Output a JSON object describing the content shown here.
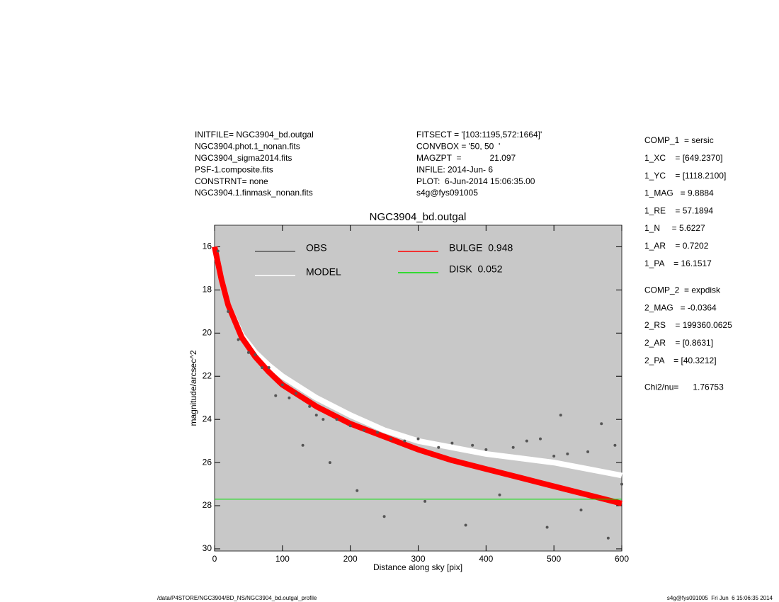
{
  "header": {
    "left": [
      "INITFILE= NGC3904_bd.outgal",
      "NGC3904.phot.1_nonan.fits",
      "NGC3904_sigma2014.fits",
      "PSF-1.composite.fits",
      "CONSTRNT= none",
      "NGC3904.1.finmask_nonan.fits"
    ],
    "middle": [
      "FITSECT = '[103:1195,572:1664]'",
      "CONVBOX = '50, 50  '",
      "MAGZPT  =            21.097",
      "INFILE: 2014-Jun- 6",
      "PLOT:  6-Jun-2014 15:06:35.00",
      "s4g@fys091005"
    ]
  },
  "parameters": [
    [
      "COMP_1  = sersic",
      "1_XC    = [649.2370]",
      "1_YC    = [1118.2100]",
      "1_MAG   = 9.8884",
      "1_RE    = 57.1894",
      "1_N     = 5.6227",
      "1_AR    = 0.7202",
      "1_PA    = 16.1517"
    ],
    [
      "COMP_2  = expdisk",
      "2_MAG   = -0.0364",
      "2_RS    = 199360.0625",
      "2_AR    = [0.8631]",
      "2_PA    = [40.3212]"
    ],
    [
      "Chi2/nu=      1.76753"
    ]
  ],
  "footer_left": "/data/P4STORE/NGC3904/BD_NS/NGC3904_bd.outgal_profile",
  "footer_right": "s4g@fys091005  Fri Jun  6 15:06:35 2014",
  "chart_data": {
    "type": "scatter",
    "title": "NGC3904_bd.outgal",
    "x_label": "Distance along sky [pix]",
    "y_label": "magnitude/arcsec^2",
    "xlim": [
      0,
      600
    ],
    "ylim": [
      15,
      30.1
    ],
    "y_inverted": true,
    "xticks": [
      0,
      100,
      200,
      300,
      400,
      500,
      600
    ],
    "yticks": [
      16,
      18,
      20,
      22,
      24,
      26,
      28,
      30
    ],
    "background": "#c8c8c8",
    "series": [
      {
        "name": "OBS",
        "color": "#555555",
        "mode": "points",
        "x": [
          5,
          20,
          35,
          50,
          60,
          70,
          80,
          90,
          100,
          110,
          120,
          130,
          140,
          150,
          160,
          170,
          180,
          200,
          210,
          220,
          240,
          250,
          260,
          280,
          300,
          310,
          330,
          350,
          370,
          380,
          400,
          420,
          440,
          460,
          480,
          490,
          500,
          510,
          520,
          540,
          550,
          570,
          580,
          590,
          600
        ],
        "values": [
          16.2,
          19.0,
          20.3,
          20.9,
          21.0,
          21.6,
          21.6,
          22.9,
          22.4,
          23.0,
          22.8,
          25.2,
          23.4,
          23.8,
          24.0,
          26.0,
          24.0,
          24.3,
          27.3,
          24.5,
          24.6,
          28.5,
          24.9,
          25.0,
          24.9,
          27.8,
          25.3,
          25.1,
          28.9,
          25.2,
          25.4,
          27.5,
          25.3,
          25.0,
          24.9,
          29.0,
          25.7,
          23.8,
          25.6,
          28.2,
          25.5,
          24.2,
          29.5,
          25.2,
          27.0
        ]
      },
      {
        "name": "MODEL",
        "color": "#ffffff",
        "mode": "line",
        "x": [
          0,
          10,
          20,
          40,
          60,
          80,
          100,
          150,
          200,
          250,
          300,
          350,
          400,
          450,
          500,
          550,
          600
        ],
        "values": [
          16.0,
          17.5,
          18.7,
          20.1,
          20.9,
          21.5,
          22.0,
          23.0,
          23.8,
          24.5,
          25.0,
          25.3,
          25.6,
          25.8,
          26.0,
          26.3,
          26.6
        ]
      },
      {
        "name": "BULGE  0.948",
        "color": "#ff0000",
        "mode": "line",
        "x": [
          0,
          10,
          20,
          40,
          60,
          80,
          100,
          150,
          200,
          250,
          300,
          350,
          400,
          450,
          500,
          550,
          600
        ],
        "values": [
          16.0,
          17.5,
          18.7,
          20.2,
          21.1,
          21.8,
          22.4,
          23.4,
          24.2,
          24.8,
          25.4,
          25.9,
          26.3,
          26.7,
          27.1,
          27.5,
          27.9
        ]
      },
      {
        "name": "DISK  0.052",
        "color": "#00e000",
        "mode": "line",
        "x": [
          0,
          600
        ],
        "values": [
          27.7,
          27.7
        ]
      }
    ]
  }
}
